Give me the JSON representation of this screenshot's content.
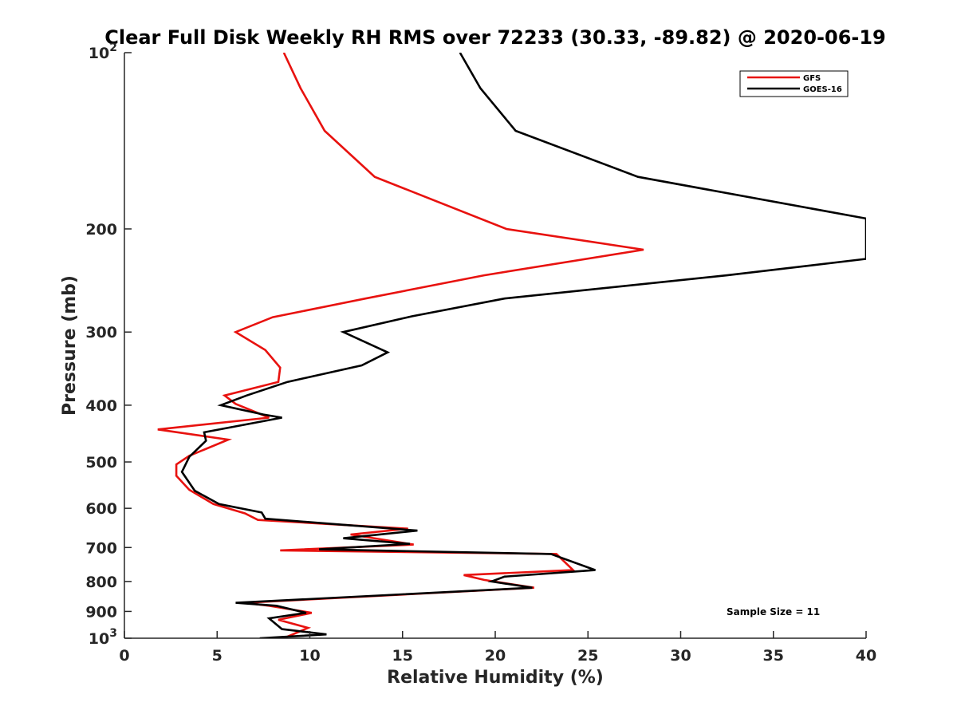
{
  "chart_data": {
    "type": "line",
    "title": "Clear Full Disk Weekly RH RMS over 72233 (30.33, -89.82) @ 2020-06-19",
    "xlabel": "Relative Humidity (%)",
    "ylabel": "Pressure (mb)",
    "xlim": [
      0,
      40
    ],
    "ylim": [
      1000,
      100
    ],
    "y_scale": "log",
    "y_reversed": true,
    "grid": false,
    "legend_position": "top-right",
    "x_ticks": [
      0,
      5,
      10,
      15,
      20,
      25,
      30,
      35,
      40
    ],
    "y_ticks": [
      100,
      200,
      300,
      400,
      500,
      600,
      700,
      800,
      900,
      1000
    ],
    "x_tick_labels": [
      "0",
      "5",
      "10",
      "15",
      "20",
      "25",
      "30",
      "35",
      "40"
    ],
    "y_tick_labels": [
      {
        "base": "10",
        "exp": "2"
      },
      {
        "base": "200",
        "exp": ""
      },
      {
        "base": "300",
        "exp": ""
      },
      {
        "base": "400",
        "exp": ""
      },
      {
        "base": "500",
        "exp": ""
      },
      {
        "base": "600",
        "exp": ""
      },
      {
        "base": "700",
        "exp": ""
      },
      {
        "base": "800",
        "exp": ""
      },
      {
        "base": "900",
        "exp": ""
      },
      {
        "base": "10",
        "exp": "3"
      }
    ],
    "annotation": "Sample Size = 11",
    "series": [
      {
        "name": "GFS",
        "color": "#e8120f",
        "points": [
          [
            8.6,
            100
          ],
          [
            9.5,
            115
          ],
          [
            10.8,
            136
          ],
          [
            13.5,
            163
          ],
          [
            20.6,
            200
          ],
          [
            28.0,
            217
          ],
          [
            19.4,
            240
          ],
          [
            13.0,
            263
          ],
          [
            8.0,
            283
          ],
          [
            6.0,
            300
          ],
          [
            7.6,
            322
          ],
          [
            8.4,
            345
          ],
          [
            8.3,
            365
          ],
          [
            5.4,
            385
          ],
          [
            6.0,
            398
          ],
          [
            7.8,
            420
          ],
          [
            1.8,
            440
          ],
          [
            5.6,
            458
          ],
          [
            3.5,
            488
          ],
          [
            2.8,
            505
          ],
          [
            2.8,
            528
          ],
          [
            3.5,
            558
          ],
          [
            4.8,
            590
          ],
          [
            6.5,
            612
          ],
          [
            7.2,
            628
          ],
          [
            15.3,
            650
          ],
          [
            12.2,
            665
          ],
          [
            15.6,
            692
          ],
          [
            8.4,
            708
          ],
          [
            23.3,
            718
          ],
          [
            24.2,
            765
          ],
          [
            18.3,
            780
          ],
          [
            19.4,
            795
          ],
          [
            22.1,
            820
          ],
          [
            6.5,
            870
          ],
          [
            7.8,
            880
          ],
          [
            10.1,
            905
          ],
          [
            8.3,
            930
          ],
          [
            9.9,
            960
          ],
          [
            8.6,
            1000
          ]
        ]
      },
      {
        "name": "GOES-16",
        "color": "#000000",
        "points": [
          [
            18.1,
            100
          ],
          [
            19.2,
            115
          ],
          [
            21.1,
            136
          ],
          [
            27.7,
            163
          ],
          [
            40.0,
            192
          ],
          [
            40.0,
            225
          ],
          [
            32.5,
            240
          ],
          [
            20.5,
            263
          ],
          [
            15.5,
            282
          ],
          [
            11.8,
            300
          ],
          [
            14.2,
            325
          ],
          [
            12.8,
            342
          ],
          [
            8.8,
            365
          ],
          [
            6.6,
            385
          ],
          [
            5.2,
            400
          ],
          [
            7.5,
            415
          ],
          [
            8.5,
            420
          ],
          [
            4.3,
            445
          ],
          [
            4.4,
            460
          ],
          [
            3.5,
            490
          ],
          [
            3.1,
            520
          ],
          [
            3.8,
            560
          ],
          [
            5.1,
            590
          ],
          [
            7.4,
            610
          ],
          [
            7.6,
            625
          ],
          [
            15.8,
            655
          ],
          [
            11.8,
            675
          ],
          [
            15.4,
            690
          ],
          [
            10.5,
            705
          ],
          [
            23.0,
            718
          ],
          [
            25.4,
            765
          ],
          [
            20.5,
            785
          ],
          [
            19.8,
            800
          ],
          [
            22.0,
            820
          ],
          [
            6.0,
            870
          ],
          [
            8.2,
            880
          ],
          [
            9.8,
            905
          ],
          [
            7.8,
            925
          ],
          [
            8.5,
            965
          ],
          [
            10.9,
            985
          ],
          [
            7.3,
            1000
          ]
        ]
      }
    ]
  }
}
